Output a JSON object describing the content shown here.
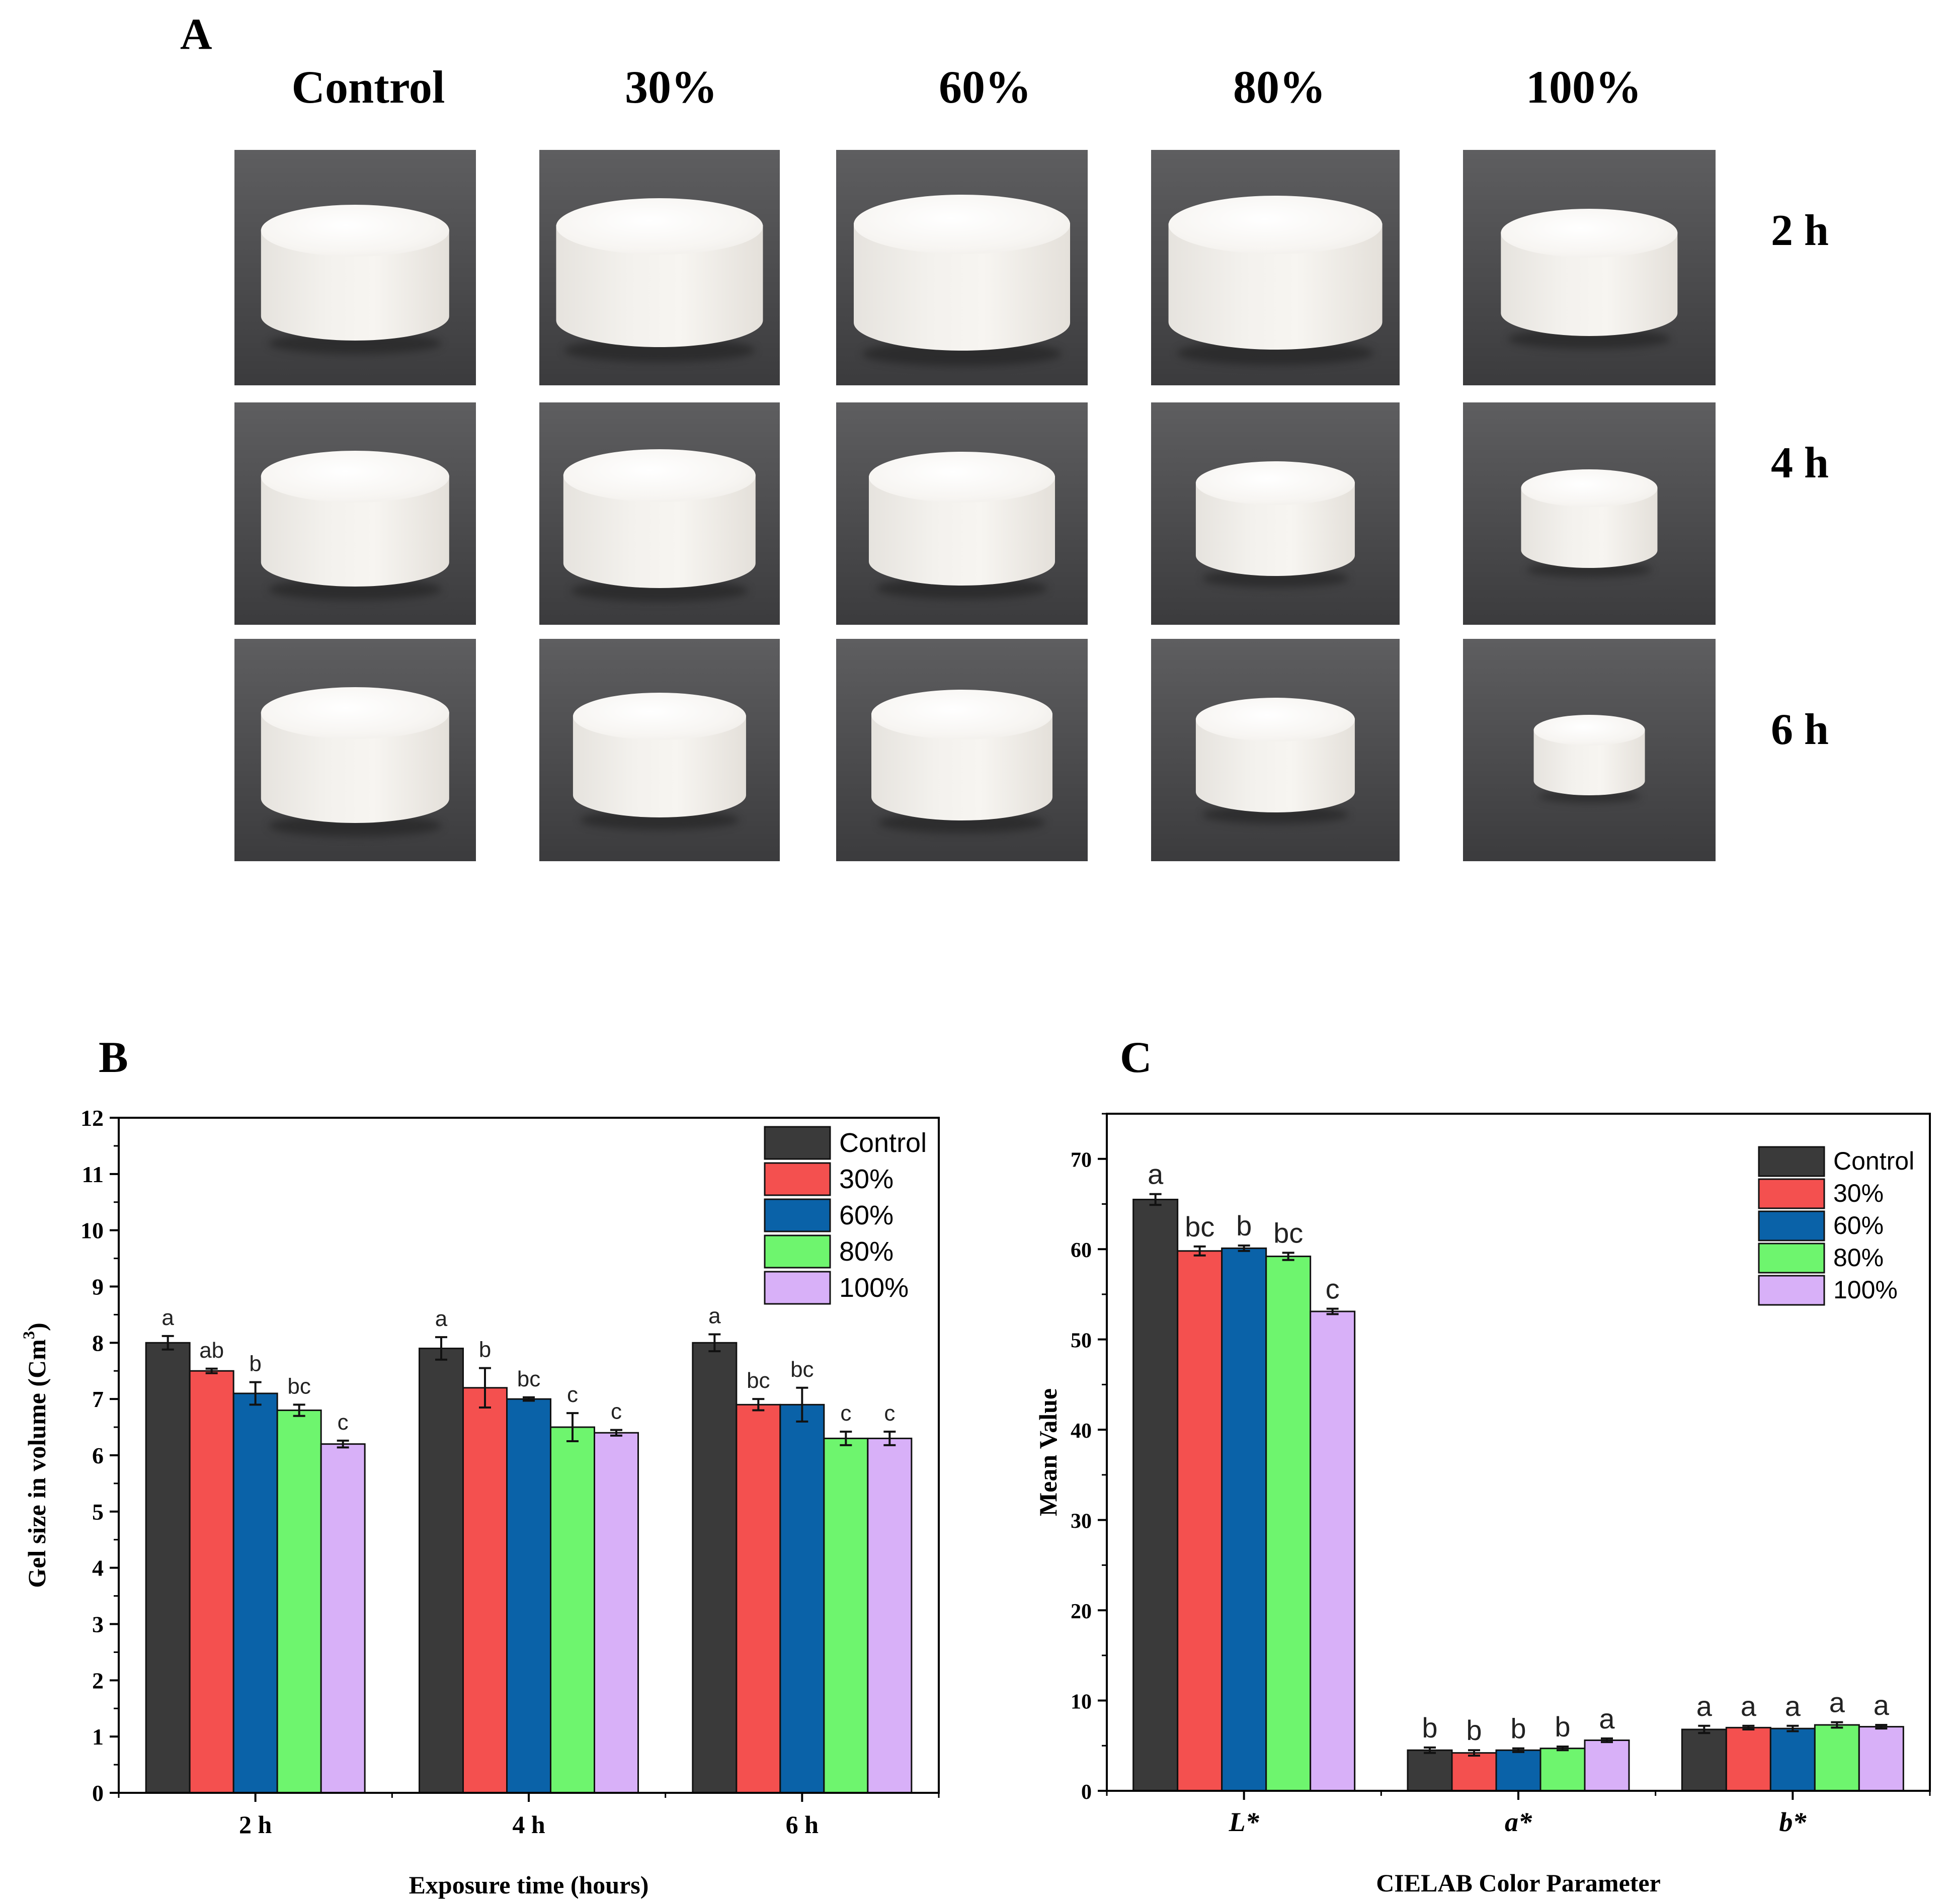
{
  "panel_a": {
    "letter": "A",
    "columns": [
      "Control",
      "30%",
      "60%",
      "80%",
      "100%"
    ],
    "rows": [
      "2 h",
      "4 h",
      "6 h"
    ],
    "gel_relative_size": [
      [
        0.78,
        0.86,
        0.86,
        0.86,
        0.7
      ],
      [
        0.78,
        0.8,
        0.74,
        0.64,
        0.54
      ],
      [
        0.78,
        0.72,
        0.72,
        0.64,
        0.44
      ]
    ]
  },
  "colors": {
    "Control": "#3a3a3a",
    "30%": "#f4504f",
    "60%": "#0a62a8",
    "80%": "#6ef56e",
    "100%": "#d8b0f8"
  },
  "chart_data": [
    {
      "panel": "B",
      "type": "bar",
      "categories": [
        "2 h",
        "4 h",
        "6 h"
      ],
      "series": [
        {
          "name": "Control",
          "values": [
            8.0,
            7.9,
            8.0
          ],
          "errors": [
            0.12,
            0.2,
            0.15
          ],
          "labels": [
            "a",
            "a",
            "a"
          ]
        },
        {
          "name": "30%",
          "values": [
            7.5,
            7.2,
            6.9
          ],
          "errors": [
            0.04,
            0.35,
            0.1
          ],
          "labels": [
            "ab",
            "b",
            "bc"
          ]
        },
        {
          "name": "60%",
          "values": [
            7.1,
            7.0,
            6.9
          ],
          "errors": [
            0.2,
            0.03,
            0.3
          ],
          "labels": [
            "b",
            "bc",
            "bc"
          ]
        },
        {
          "name": "80%",
          "values": [
            6.8,
            6.5,
            6.3
          ],
          "errors": [
            0.1,
            0.25,
            0.12
          ],
          "labels": [
            "bc",
            "c",
            "c"
          ]
        },
        {
          "name": "100%",
          "values": [
            6.2,
            6.4,
            6.3
          ],
          "errors": [
            0.06,
            0.05,
            0.12
          ],
          "labels": [
            "c",
            "c",
            "c"
          ]
        }
      ],
      "xlabel": "Exposure time (hours)",
      "ylabel": "Gel size in volume (Cm",
      "ylabel_sup": "3",
      "ylabel_end": ")",
      "ylim": [
        0,
        12
      ],
      "yticks": [
        "0",
        "1",
        "2",
        "3",
        "4",
        "5",
        "6",
        "7",
        "8",
        "9",
        "10",
        "11",
        "12"
      ],
      "legend": "top-right"
    },
    {
      "panel": "C",
      "type": "bar",
      "categories": [
        "L*",
        "a*",
        "b*"
      ],
      "series": [
        {
          "name": "Control",
          "values": [
            65.5,
            4.5,
            6.8
          ],
          "errors": [
            0.6,
            0.3,
            0.4
          ],
          "labels": [
            "a",
            "b",
            "a"
          ]
        },
        {
          "name": "30%",
          "values": [
            59.8,
            4.2,
            7.0
          ],
          "errors": [
            0.5,
            0.3,
            0.2
          ],
          "labels": [
            "bc",
            "b",
            "a"
          ]
        },
        {
          "name": "60%",
          "values": [
            60.1,
            4.5,
            6.9
          ],
          "errors": [
            0.3,
            0.2,
            0.3
          ],
          "labels": [
            "b",
            "b",
            "a"
          ]
        },
        {
          "name": "80%",
          "values": [
            59.2,
            4.7,
            7.3
          ],
          "errors": [
            0.4,
            0.2,
            0.3
          ],
          "labels": [
            "bc",
            "b",
            "a"
          ]
        },
        {
          "name": "100%",
          "values": [
            53.1,
            5.6,
            7.1
          ],
          "errors": [
            0.3,
            0.2,
            0.2
          ],
          "labels": [
            "c",
            "a",
            "a"
          ]
        }
      ],
      "xlabel": "CIELAB Color Parameter",
      "ylabel": "Mean Value",
      "ylim": [
        0,
        75
      ],
      "yticks": [
        "0",
        "10",
        "20",
        "30",
        "40",
        "50",
        "60",
        "70"
      ],
      "legend": "top-right"
    }
  ]
}
